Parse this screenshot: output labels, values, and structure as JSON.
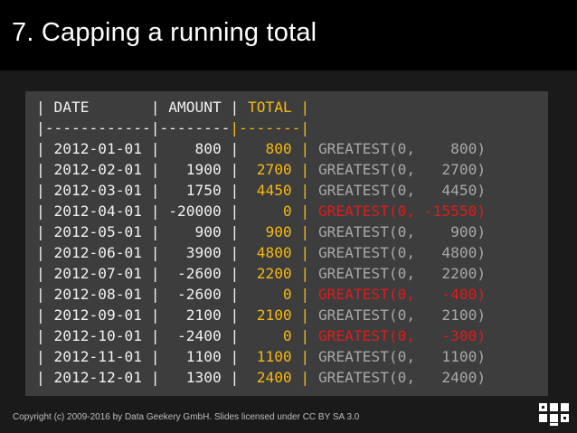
{
  "slide": {
    "title": "7. Capping a running total",
    "footer": "Copyright (c) 2009-2016 by Data Geekery GmbH. Slides licensed under CC BY SA 3.0"
  },
  "colors": {
    "background": "#1a1a1a",
    "title_bar": "#000000",
    "code_panel": "#3d3d3d",
    "text": "#f1f1f1",
    "total_column": "#f5b712",
    "greatest_normal": "#a8a8a8",
    "greatest_negative": "#e21b1b"
  },
  "table": {
    "header": {
      "date": "DATE",
      "amount": "AMOUNT",
      "total": "TOTAL"
    },
    "separator": "|------------|--------|-------|",
    "rows": [
      {
        "date": "2012-01-01",
        "amount": "800",
        "total": "800",
        "greatest": "GREATEST(0,    800)",
        "negative": false
      },
      {
        "date": "2012-02-01",
        "amount": "1900",
        "total": "2700",
        "greatest": "GREATEST(0,   2700)",
        "negative": false
      },
      {
        "date": "2012-03-01",
        "amount": "1750",
        "total": "4450",
        "greatest": "GREATEST(0,   4450)",
        "negative": false
      },
      {
        "date": "2012-04-01",
        "amount": "-20000",
        "total": "0",
        "greatest": "GREATEST(0, -15550)",
        "negative": true
      },
      {
        "date": "2012-05-01",
        "amount": "900",
        "total": "900",
        "greatest": "GREATEST(0,    900)",
        "negative": false
      },
      {
        "date": "2012-06-01",
        "amount": "3900",
        "total": "4800",
        "greatest": "GREATEST(0,   4800)",
        "negative": false
      },
      {
        "date": "2012-07-01",
        "amount": "-2600",
        "total": "2200",
        "greatest": "GREATEST(0,   2200)",
        "negative": false
      },
      {
        "date": "2012-08-01",
        "amount": "-2600",
        "total": "0",
        "greatest": "GREATEST(0,   -400)",
        "negative": true
      },
      {
        "date": "2012-09-01",
        "amount": "2100",
        "total": "2100",
        "greatest": "GREATEST(0,   2100)",
        "negative": false
      },
      {
        "date": "2012-10-01",
        "amount": "-2400",
        "total": "0",
        "greatest": "GREATEST(0,   -300)",
        "negative": true
      },
      {
        "date": "2012-11-01",
        "amount": "1100",
        "total": "1100",
        "greatest": "GREATEST(0,   1100)",
        "negative": false
      },
      {
        "date": "2012-12-01",
        "amount": "1300",
        "total": "2400",
        "greatest": "GREATEST(0,   2400)",
        "negative": false
      }
    ]
  },
  "logo": {
    "icon": "jooq-logo-icon"
  }
}
